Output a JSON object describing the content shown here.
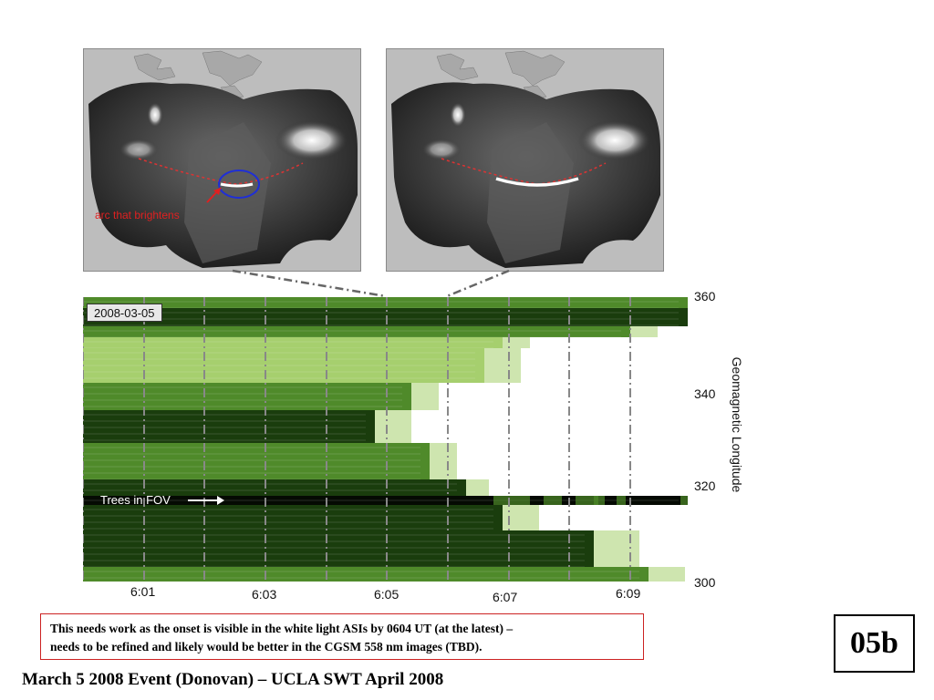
{
  "asi_images": {
    "left": {
      "annotation": "arc that brightens"
    },
    "right": {}
  },
  "keogram": {
    "date_label": "2008-03-05",
    "trees_label": "Trees in FOV",
    "y_axis_title": "Geomagnetic Longitude",
    "y_ticks": [
      "360",
      "340",
      "320",
      "300"
    ],
    "x_ticks": [
      "6:01",
      "6:03",
      "6:05",
      "6:07",
      "6:09"
    ],
    "colors": {
      "dark_green": "#1a3d0d",
      "mid_green": "#4f8a2a",
      "light_green": "#a6cf6e",
      "divider": "#888888"
    }
  },
  "note": {
    "line1": "This needs work as the onset is visible in the white light ASIs by 0604 UT (at the latest) –",
    "line2": "needs to be refined and likely would be better in the CGSM 558 nm images (TBD)."
  },
  "footer": {
    "title": "March 5 2008 Event (Donovan) – UCLA SWT April 2008"
  },
  "slide_id": "05b"
}
